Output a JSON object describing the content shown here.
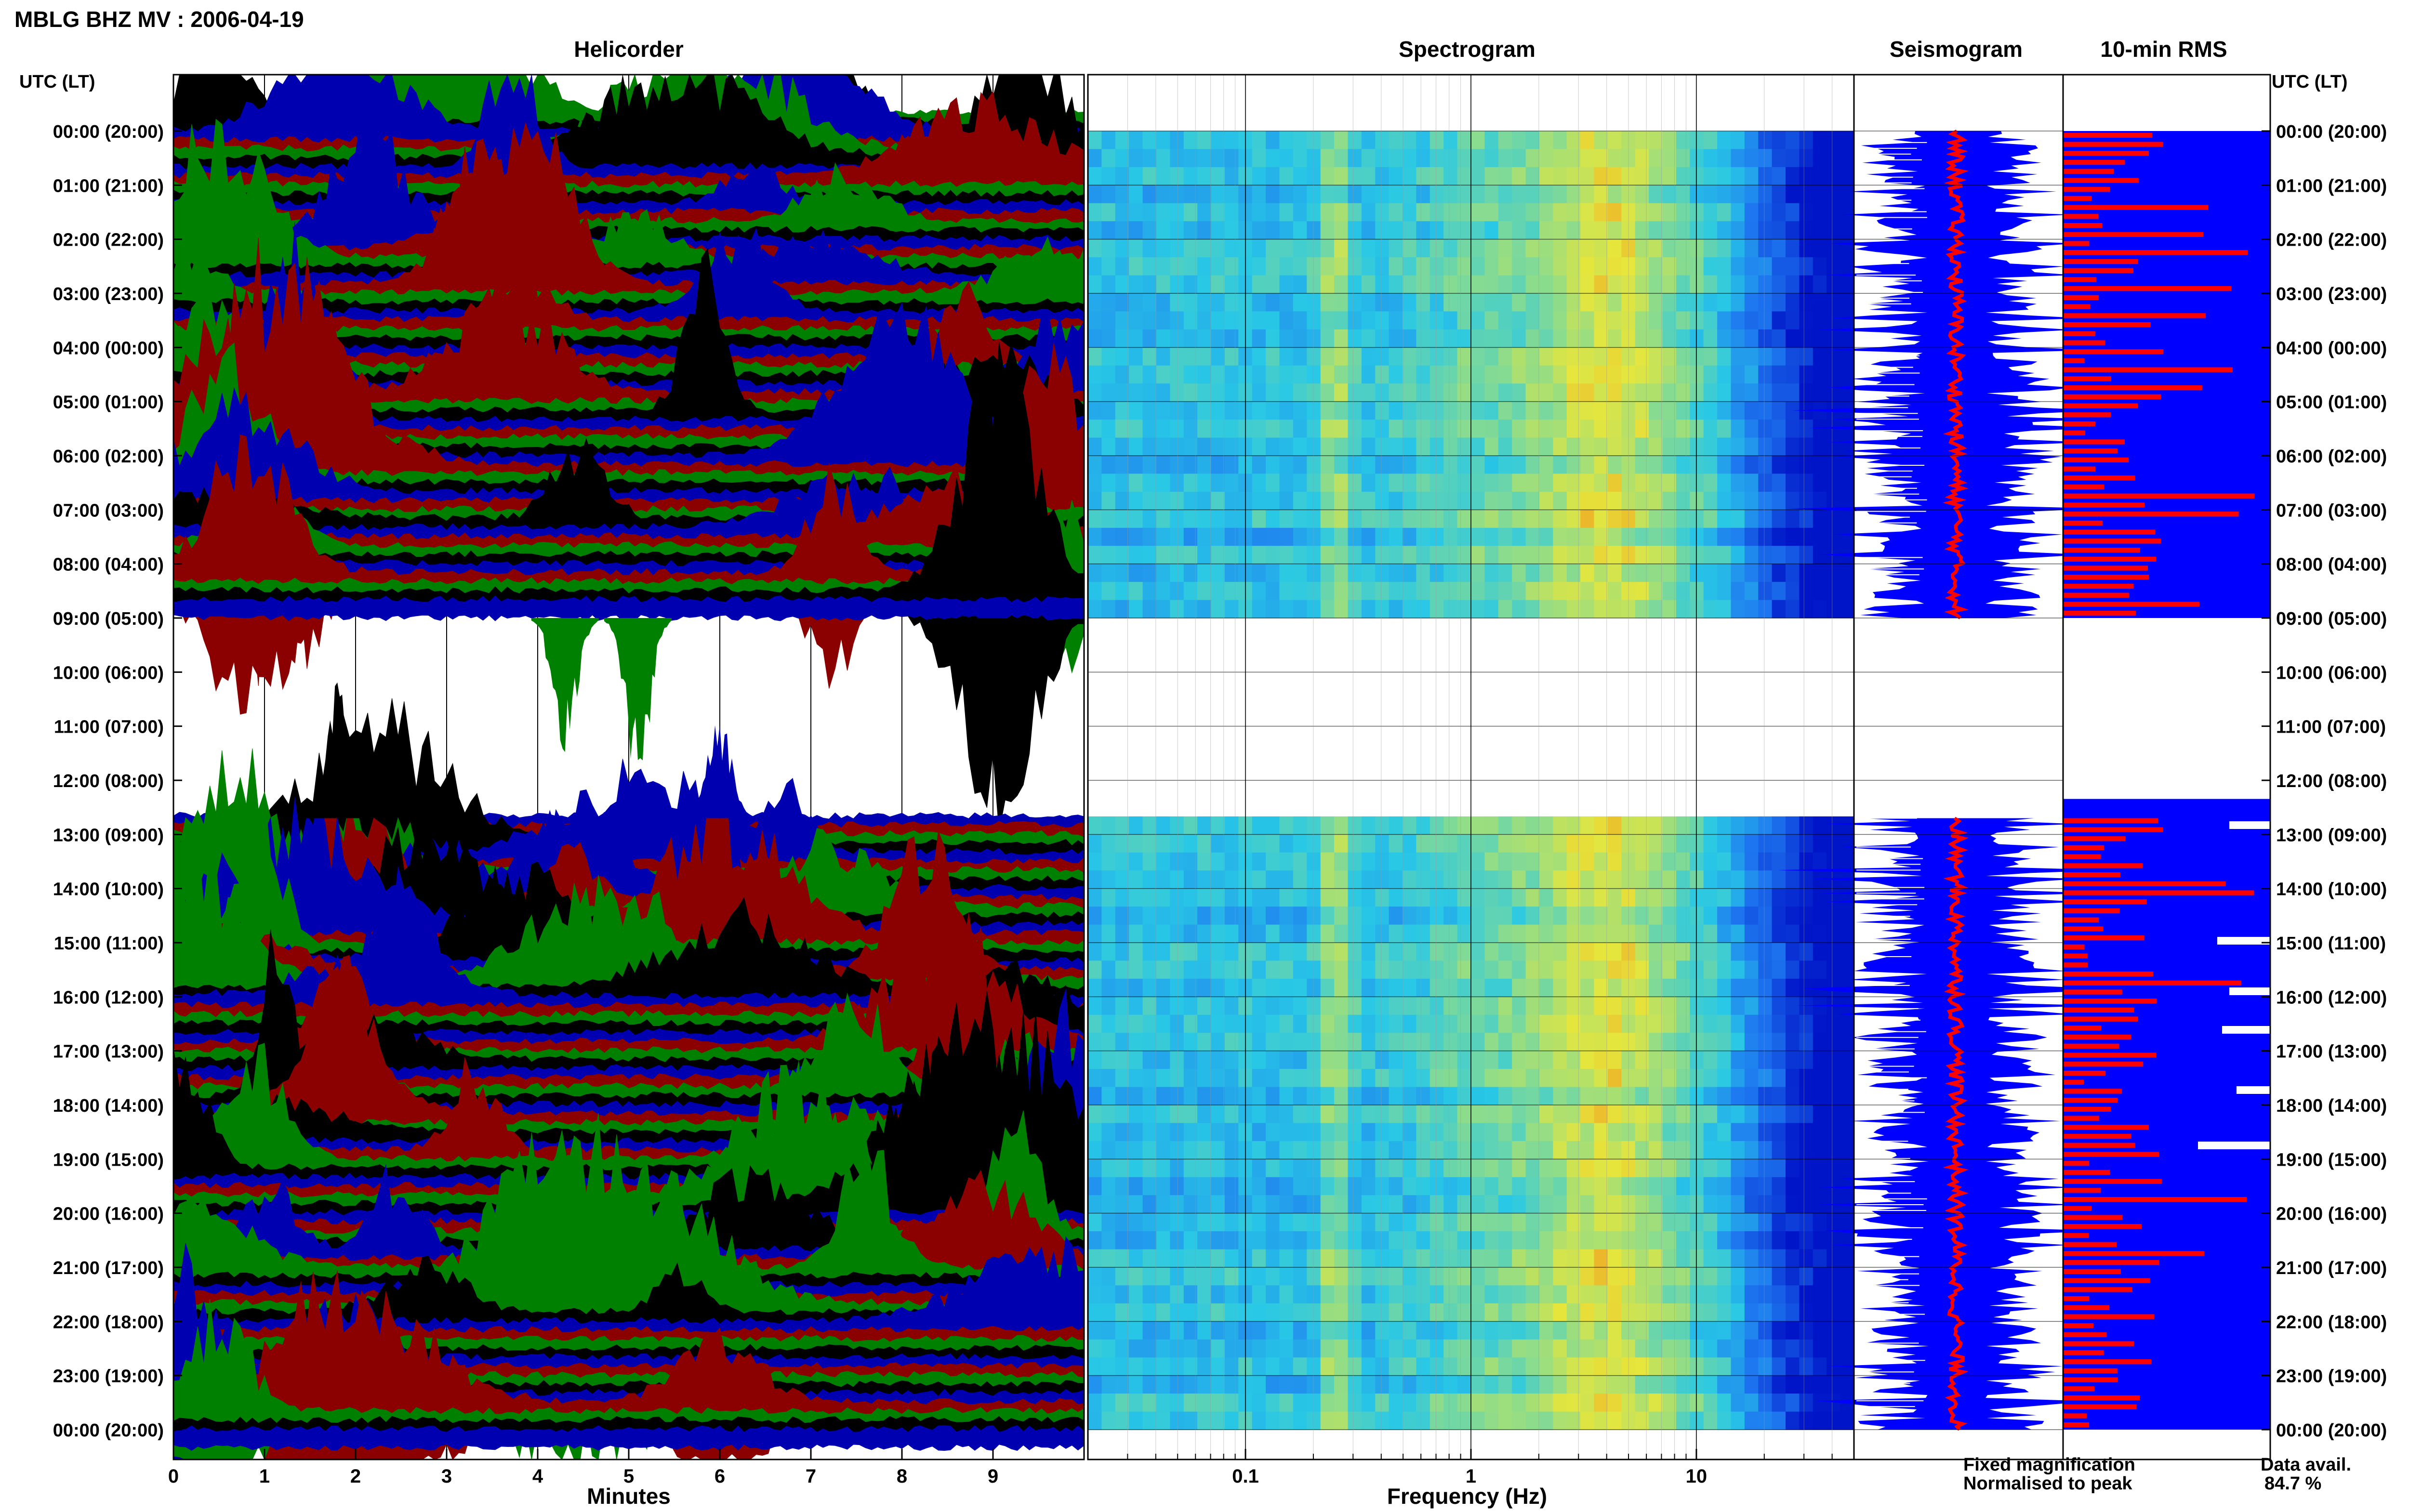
{
  "title": "MBLG BHZ MV : 2006-04-19",
  "panels": {
    "helicorder": "Helicorder",
    "spectrogram": "Spectrogram",
    "seismogram": "Seismogram",
    "rms": "10-min RMS"
  },
  "axis_header": {
    "left": "UTC (LT)",
    "right": "UTC (LT)"
  },
  "time_labels": [
    "00:00 (20:00)",
    "01:00 (21:00)",
    "02:00 (22:00)",
    "03:00 (23:00)",
    "04:00 (00:00)",
    "05:00 (01:00)",
    "06:00 (02:00)",
    "07:00 (03:00)",
    "08:00 (04:00)",
    "09:00 (05:00)",
    "10:00 (06:00)",
    "11:00 (07:00)",
    "12:00 (08:00)",
    "13:00 (09:00)",
    "14:00 (10:00)",
    "15:00 (11:00)",
    "16:00 (12:00)",
    "17:00 (13:00)",
    "18:00 (14:00)",
    "19:00 (15:00)",
    "20:00 (16:00)",
    "21:00 (17:00)",
    "22:00 (18:00)",
    "23:00 (19:00)",
    "00:00 (20:00)"
  ],
  "helicorder_xlabel": "Minutes",
  "helicorder_ticks": [
    "0",
    "1",
    "2",
    "3",
    "4",
    "5",
    "6",
    "7",
    "8",
    "9"
  ],
  "spectrogram_xlabel": "Frequency (Hz)",
  "spectrogram_ticks": [
    "0.1",
    "1",
    "10"
  ],
  "legend": {
    "fixed": "Fixed magnification",
    "normalised": "Normalised to peak",
    "fixed_color": "#0000ff",
    "normalised_color": "#ff0000"
  },
  "data_availability": {
    "label": "Data avail.",
    "value": "84.7 %"
  },
  "trace_colors": [
    "#000000",
    "#0000b0",
    "#8b0000",
    "#008000"
  ],
  "chart_data": {
    "type": "heatmap",
    "date": "2006-04-19",
    "station": "MBLG BHZ MV",
    "time_axis_utc_hours": [
      0,
      24
    ],
    "data_gap_utc_hours": [
      9,
      12.7
    ],
    "helicorder_minutes_range": [
      0,
      10
    ],
    "spectrogram_frequency_range_hz": [
      0.02,
      50
    ],
    "spectrogram_frequency_scale": "log",
    "data_availability_percent": 84.7
  }
}
